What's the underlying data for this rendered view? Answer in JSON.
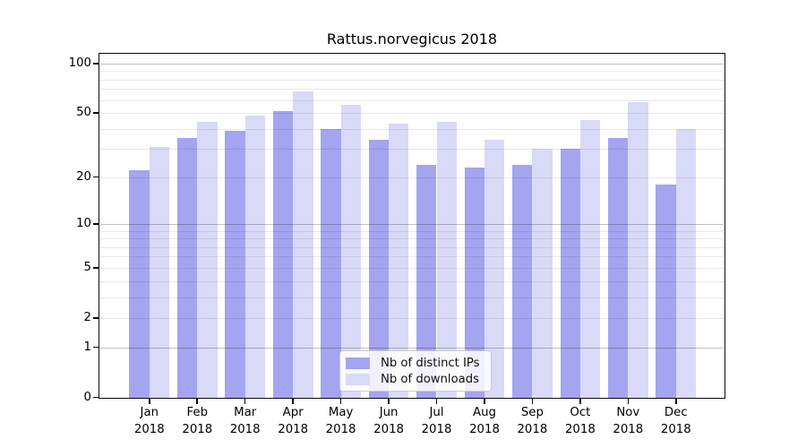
{
  "chart_data": {
    "type": "bar",
    "title": "Rattus.norvegicus 2018",
    "categories": [
      "Jan",
      "Feb",
      "Mar",
      "Apr",
      "May",
      "Jun",
      "Jul",
      "Aug",
      "Sep",
      "Oct",
      "Nov",
      "Dec"
    ],
    "x_tick_year": "2018",
    "series": [
      {
        "name": "Nb of distinct IPs",
        "color": "#a4a4f0",
        "values": [
          22,
          35,
          39,
          51,
          40,
          34,
          24,
          23,
          24,
          30,
          35,
          18
        ]
      },
      {
        "name": "Nb of downloads",
        "color": "#d9d9f8",
        "values": [
          31,
          44,
          48,
          68,
          56,
          43,
          44,
          34,
          30,
          45,
          58,
          40
        ]
      }
    ],
    "y_scale": "log1p",
    "ylim": [
      0,
      117
    ],
    "y_ticks": [
      {
        "label": "0",
        "value": 0
      },
      {
        "label": "1",
        "value": 1
      },
      {
        "label": "2",
        "value": 2
      },
      {
        "label": "5",
        "value": 5
      },
      {
        "label": "10",
        "value": 10
      },
      {
        "label": "20",
        "value": 20
      },
      {
        "label": "50",
        "value": 50
      },
      {
        "label": "100",
        "value": 100
      }
    ],
    "y_gridlines": {
      "major": [
        1,
        10,
        100
      ],
      "minor": [
        2,
        3,
        4,
        5,
        6,
        7,
        8,
        9,
        20,
        30,
        40,
        50,
        60,
        70,
        80,
        90
      ]
    },
    "grid": true,
    "legend_position": "lower center"
  }
}
